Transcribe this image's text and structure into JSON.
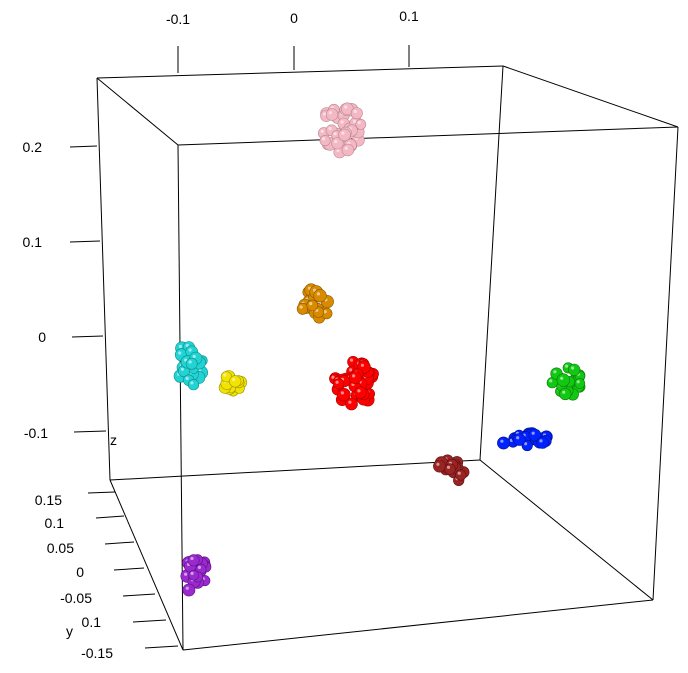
{
  "chart_data": {
    "type": "scatter3d",
    "x_axis": {
      "label": "",
      "ticks": [
        "-0.1",
        "0",
        "0.1"
      ]
    },
    "y_axis": {
      "label": "y",
      "ticks": [
        "0.15",
        "0.1",
        "0.05",
        "0",
        "-0.05",
        "0.1",
        "-0.15"
      ]
    },
    "z_axis": {
      "label": "z",
      "ticks": [
        "0.2",
        "0.1",
        "0",
        "-0.1"
      ]
    },
    "grid": false,
    "legend": "none",
    "clusters": [
      {
        "color": "#f4b8c4",
        "edge": "#b98792",
        "x": 0.04,
        "y": 0.0,
        "z": 0.22
      },
      {
        "color": "#d98b00",
        "edge": "#8a5700",
        "x": 0.0,
        "y": 0.0,
        "z": 0.03
      },
      {
        "color": "#22d3d3",
        "edge": "#0e8c8c",
        "x": -0.1,
        "y": 0.05,
        "z": -0.03
      },
      {
        "color": "#f2e300",
        "edge": "#9a9000",
        "x": -0.07,
        "y": 0.02,
        "z": -0.04
      },
      {
        "color": "#ff0000",
        "edge": "#a80000",
        "x": 0.05,
        "y": 0.0,
        "z": -0.05
      },
      {
        "color": "#12c812",
        "edge": "#0a7a0a",
        "x": 0.22,
        "y": 0.0,
        "z": -0.04
      },
      {
        "color": "#0022ff",
        "edge": "#00108f",
        "x": 0.18,
        "y": -0.05,
        "z": -0.12
      },
      {
        "color": "#9a2323",
        "edge": "#5e1212",
        "x": 0.1,
        "y": -0.1,
        "z": -0.15
      },
      {
        "color": "#9a2ad0",
        "edge": "#5c1080",
        "x": -0.1,
        "y": -0.15,
        "z": -0.2
      }
    ]
  }
}
